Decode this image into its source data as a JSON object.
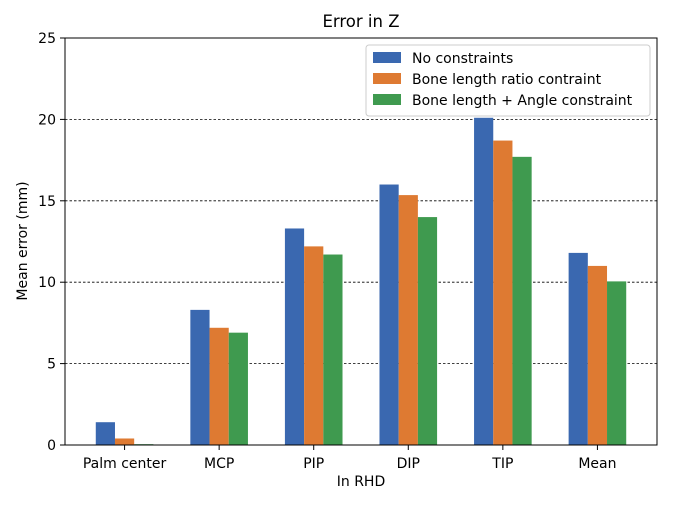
{
  "chart_data": {
    "type": "bar",
    "title": "Error in Z",
    "xlabel": "In RHD",
    "ylabel": "Mean error (mm)",
    "categories": [
      "Palm center",
      "MCP",
      "PIP",
      "DIP",
      "TIP",
      "Mean"
    ],
    "series": [
      {
        "name": "No constraints",
        "color": "#3a68b0",
        "values": [
          1.4,
          8.3,
          13.3,
          16.0,
          20.1,
          11.8
        ]
      },
      {
        "name": "Bone length ratio contraint",
        "color": "#de7a32",
        "values": [
          0.4,
          7.2,
          12.2,
          15.35,
          18.7,
          11.0
        ]
      },
      {
        "name": "Bone length + Angle constraint",
        "color": "#3f9a4f",
        "values": [
          0.05,
          6.9,
          11.7,
          14.0,
          17.7,
          10.05
        ]
      }
    ],
    "ylim": [
      0,
      25
    ],
    "yticks": [
      "0",
      "5",
      "10",
      "15",
      "20",
      "25"
    ],
    "grid": "y-dashed",
    "legend_position": "top-right"
  }
}
